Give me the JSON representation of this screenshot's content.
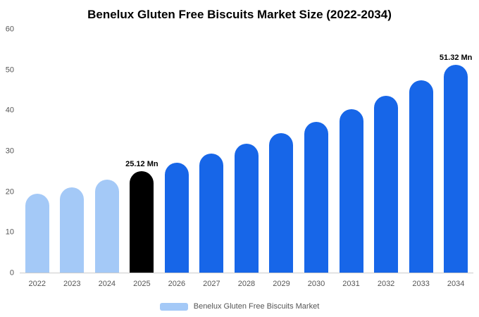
{
  "chart_data": {
    "type": "bar",
    "title": "Benelux Gluten Free Biscuits Market Size (2022-2034)",
    "categories": [
      "2022",
      "2023",
      "2024",
      "2025",
      "2026",
      "2027",
      "2028",
      "2029",
      "2030",
      "2031",
      "2032",
      "2033",
      "2034"
    ],
    "values": [
      19.4,
      21.0,
      22.9,
      25.12,
      27.2,
      29.4,
      31.8,
      34.4,
      37.3,
      40.4,
      43.7,
      47.4,
      51.32
    ],
    "bar_colors": [
      "#a4c9f7",
      "#a4c9f7",
      "#a4c9f7",
      "#000000",
      "#1766e8",
      "#1766e8",
      "#1766e8",
      "#1766e8",
      "#1766e8",
      "#1766e8",
      "#1766e8",
      "#1766e8",
      "#1766e8"
    ],
    "annotations": [
      {
        "index": 3,
        "text": "25.12 Mn"
      },
      {
        "index": 12,
        "text": "51.32 Mn"
      }
    ],
    "ylim": [
      0,
      60
    ],
    "yticks": [
      0,
      10,
      20,
      30,
      40,
      50,
      60
    ],
    "grid": false,
    "legend": {
      "label": "Benelux Gluten Free Biscuits Market",
      "swatch_color": "#a4c9f7",
      "position": "bottom"
    }
  }
}
